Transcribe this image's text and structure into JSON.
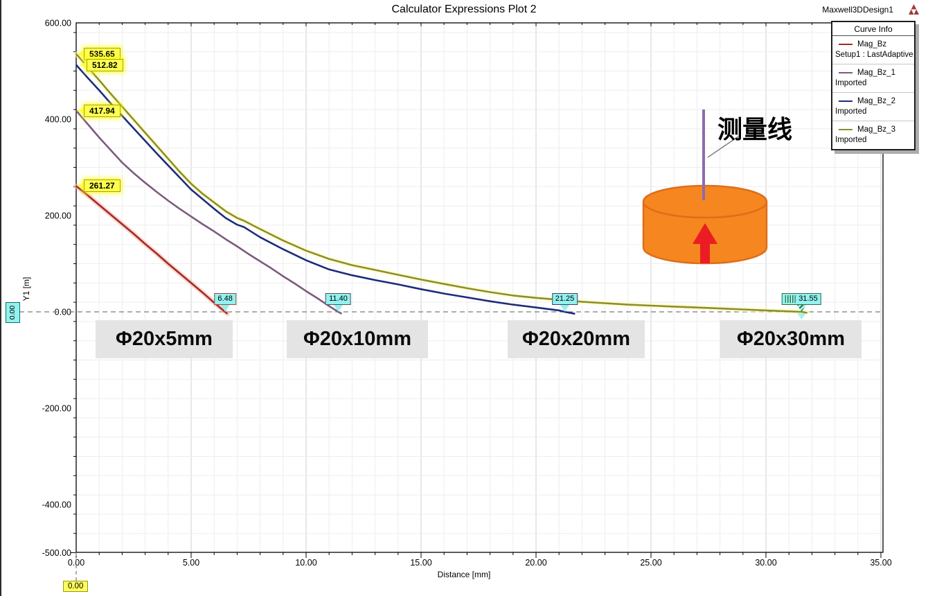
{
  "header": {
    "title": "Calculator Expressions Plot 2",
    "design_name": "Maxwell3DDesign1",
    "logo_icon": "maxwell-logo",
    "logo_color": "#9E3B3B"
  },
  "legend": {
    "header": "Curve Info",
    "entries": [
      {
        "name": "Mag_Bz",
        "info": "Setup1 : LastAdaptive",
        "color": "#A02C28"
      },
      {
        "name": "Mag_Bz_1",
        "info": "Imported",
        "color": "#7D5A7D"
      },
      {
        "name": "Mag_Bz_2",
        "info": "Imported",
        "color": "#1C2C7C"
      },
      {
        "name": "Mag_Bz_3",
        "info": "Imported",
        "color": "#8D8D2F"
      }
    ]
  },
  "chart_data": {
    "type": "line",
    "title": "Calculator Expressions Plot 2",
    "xlabel": "Distance [mm]",
    "ylabel": "Y1 [m]",
    "xlim": [
      0,
      35
    ],
    "ylim": [
      -500,
      600
    ],
    "grid": true,
    "x_major_ticks": [
      0,
      5,
      10,
      15,
      20,
      25,
      30,
      35
    ],
    "x_tick_labels": [
      "0.00",
      "5.00",
      "10.00",
      "15.00",
      "20.00",
      "25.00",
      "30.00",
      "35.00"
    ],
    "y_major_ticks": [
      600,
      400,
      200,
      0,
      -200,
      -400,
      -500
    ],
    "y_tick_labels": [
      "600.00",
      "400.00",
      "200.00",
      "0.00",
      "-200.00",
      "-400.00",
      "-500.00"
    ],
    "x_minor_step": 1,
    "y_minor_step": 40,
    "legend_position": "top-right",
    "series": [
      {
        "name": "Mag_Bz",
        "info": "Setup1 : LastAdaptive",
        "color": "#A02C28",
        "glow": "#FFB4A8",
        "points": [
          [
            0,
            261.27
          ],
          [
            0.5,
            242
          ],
          [
            1,
            222
          ],
          [
            1.5,
            202
          ],
          [
            2,
            182
          ],
          [
            2.5,
            162
          ],
          [
            3,
            141
          ],
          [
            3.5,
            121
          ],
          [
            4,
            100
          ],
          [
            4.5,
            80
          ],
          [
            5,
            60
          ],
          [
            5.5,
            40
          ],
          [
            6,
            19
          ],
          [
            6.48,
            0
          ],
          [
            6.58,
            -4
          ]
        ]
      },
      {
        "name": "Mag_Bz_1",
        "info": "Imported",
        "color": "#7D5A7D",
        "glow": null,
        "points": [
          [
            0,
            417.94
          ],
          [
            0.5,
            390
          ],
          [
            1,
            362
          ],
          [
            1.5,
            336
          ],
          [
            2,
            310
          ],
          [
            2.5,
            288
          ],
          [
            3,
            268
          ],
          [
            3.5,
            249
          ],
          [
            4,
            231
          ],
          [
            4.5,
            214
          ],
          [
            5,
            198
          ],
          [
            5.5,
            182
          ],
          [
            6,
            167
          ],
          [
            6.5,
            151
          ],
          [
            7,
            136
          ],
          [
            7.5,
            120
          ],
          [
            8,
            105
          ],
          [
            8.5,
            90
          ],
          [
            9,
            74
          ],
          [
            9.5,
            59
          ],
          [
            10,
            43
          ],
          [
            10.5,
            28
          ],
          [
            11,
            12
          ],
          [
            11.4,
            0
          ],
          [
            11.55,
            -4
          ]
        ]
      },
      {
        "name": "Mag_Bz_2",
        "info": "Imported",
        "color": "#1C2C7C",
        "glow": null,
        "points": [
          [
            0,
            512.82
          ],
          [
            0.5,
            486
          ],
          [
            1,
            460
          ],
          [
            1.5,
            433
          ],
          [
            2,
            407
          ],
          [
            2.5,
            381
          ],
          [
            3,
            355
          ],
          [
            3.5,
            329
          ],
          [
            4,
            304
          ],
          [
            4.5,
            279
          ],
          [
            5,
            254
          ],
          [
            5.5,
            234
          ],
          [
            6,
            214
          ],
          [
            6.5,
            195
          ],
          [
            7,
            181
          ],
          [
            7.3,
            176
          ],
          [
            8,
            155
          ],
          [
            9,
            130
          ],
          [
            10,
            107
          ],
          [
            11,
            88
          ],
          [
            12,
            76
          ],
          [
            13,
            66
          ],
          [
            14,
            57
          ],
          [
            15,
            47
          ],
          [
            16,
            38
          ],
          [
            17,
            30
          ],
          [
            18,
            22
          ],
          [
            19,
            15
          ],
          [
            20,
            9
          ],
          [
            21,
            3
          ],
          [
            21.25,
            0
          ],
          [
            21.7,
            -4
          ]
        ]
      },
      {
        "name": "Mag_Bz_3",
        "info": "Imported",
        "color": "#8D8D2F",
        "glow": "#FFFFB0",
        "points": [
          [
            0,
            535.65
          ],
          [
            0.5,
            508
          ],
          [
            1,
            481
          ],
          [
            1.5,
            453
          ],
          [
            2,
            426
          ],
          [
            2.5,
            399
          ],
          [
            3,
            372
          ],
          [
            3.5,
            345
          ],
          [
            4,
            318
          ],
          [
            4.5,
            291
          ],
          [
            5,
            266
          ],
          [
            5.5,
            245
          ],
          [
            6,
            227
          ],
          [
            6.5,
            209
          ],
          [
            7,
            195
          ],
          [
            7.3,
            189
          ],
          [
            8,
            172
          ],
          [
            9,
            148
          ],
          [
            10,
            127
          ],
          [
            11,
            110
          ],
          [
            12,
            97
          ],
          [
            13,
            87
          ],
          [
            14,
            77
          ],
          [
            15,
            67
          ],
          [
            16,
            58
          ],
          [
            17,
            49
          ],
          [
            18,
            41
          ],
          [
            19,
            34
          ],
          [
            20,
            29
          ],
          [
            21,
            25
          ],
          [
            22,
            21
          ],
          [
            23,
            18
          ],
          [
            24,
            15
          ],
          [
            25,
            13
          ],
          [
            26,
            11
          ],
          [
            27,
            9
          ],
          [
            28,
            7
          ],
          [
            29,
            5
          ],
          [
            30,
            3
          ],
          [
            31,
            1
          ],
          [
            31.55,
            0
          ],
          [
            31.8,
            -2
          ]
        ]
      }
    ]
  },
  "markers": {
    "y_axis_marker": {
      "text": "0.00"
    },
    "x_origin_marker": {
      "text": "0.00"
    },
    "start_value_labels": [
      {
        "text": "535.65",
        "value": 535.65
      },
      {
        "text": "512.82",
        "value": 512.82
      },
      {
        "text": "417.94",
        "value": 417.94
      },
      {
        "text": "261.27",
        "value": 261.27
      }
    ],
    "zero_cross_markers": [
      {
        "text": "6.48",
        "x": 6.48,
        "selected": false,
        "border": "#9A4A42"
      },
      {
        "text": "11.40",
        "x": 11.4,
        "selected": false,
        "border": "#56505B"
      },
      {
        "text": "21.25",
        "x": 21.25,
        "selected": false,
        "border": "#3A4060"
      },
      {
        "text": "31.55",
        "x": 31.55,
        "selected": true,
        "border": "#2F6B50"
      }
    ]
  },
  "annotations": {
    "size_labels": [
      "Φ20x5mm",
      "Φ20x10mm",
      "Φ20x20mm",
      "Φ20x30mm"
    ],
    "measure_line_label": "测量线",
    "magnet_color": "#F6861F",
    "magnet_stroke": "#DD6F1B",
    "arrow_color": "#EC1C24",
    "measure_line_color": "#8D6CAE",
    "leader_color": "#808080"
  }
}
